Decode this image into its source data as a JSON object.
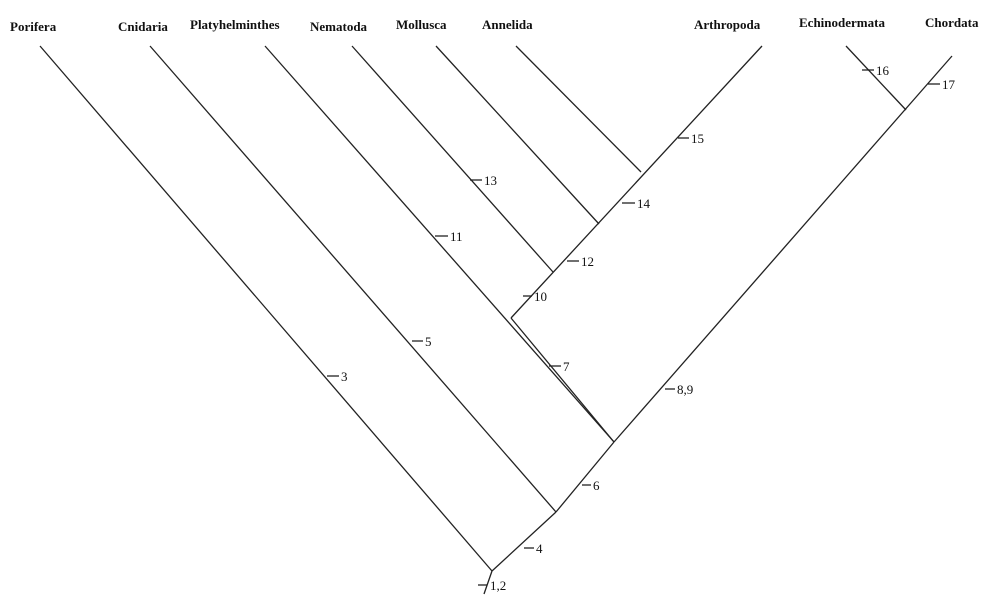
{
  "taxa": {
    "porifera": "Porifera",
    "cnidaria": "Cnidaria",
    "platyhelminthes": "Platyhelminthes",
    "nematoda": "Nematoda",
    "mollusca": "Mollusca",
    "annelida": "Annelida",
    "arthropoda": "Arthropoda",
    "echinodermata": "Echinodermata",
    "chordata": "Chordata"
  },
  "characters": {
    "c1_2": "1,2",
    "c3": "3",
    "c4": "4",
    "c5": "5",
    "c6": "6",
    "c7": "7",
    "c8_9": "8,9",
    "c10": "10",
    "c11": "11",
    "c12": "12",
    "c13": "13",
    "c14": "14",
    "c15": "15",
    "c16": "16",
    "c17": "17"
  }
}
